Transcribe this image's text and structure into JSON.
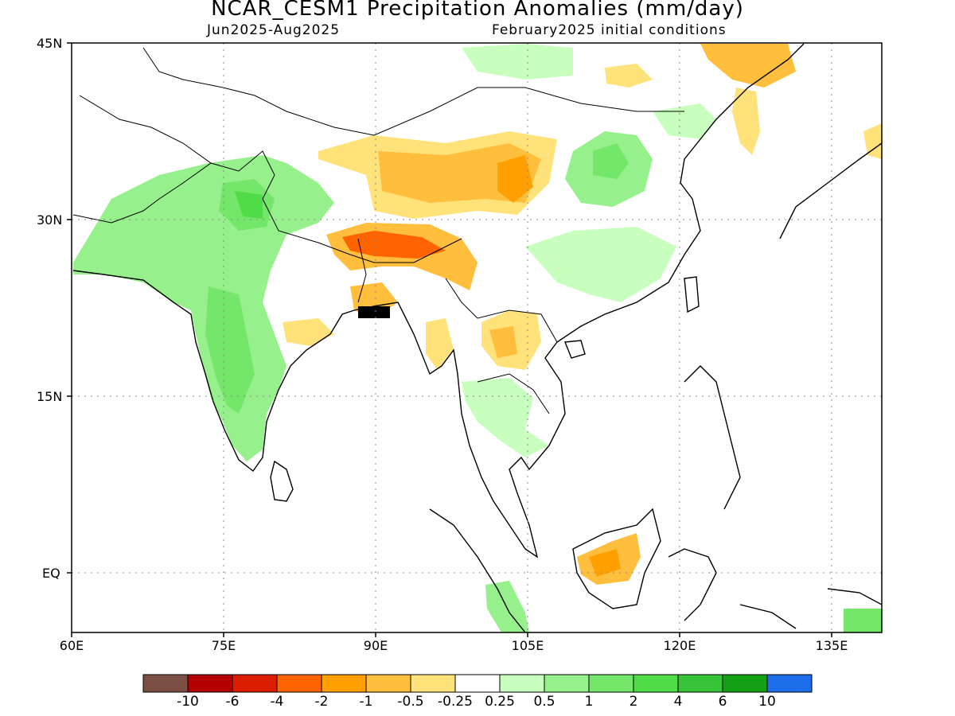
{
  "header": {
    "title": "NCAR_CESM1 Precipitation Anomalies (mm/day)",
    "period": "Jun2025-Aug2025",
    "init": "February2025 initial conditions"
  },
  "map": {
    "lon_range": [
      60,
      140
    ],
    "lat_range": [
      -6,
      45
    ],
    "lat_labels": [
      "45N",
      "30N",
      "15N",
      "EQ"
    ],
    "lon_labels": [
      "60E",
      "75E",
      "90E",
      "105E",
      "120E",
      "135E"
    ],
    "grid_lines": "dotted"
  },
  "colorbar": {
    "colors": [
      "#7b4f43",
      "#b40000",
      "#dc1e00",
      "#ff6400",
      "#ffa000",
      "#ffbe3c",
      "#ffe27a",
      "#ffffff",
      "#c8ffbe",
      "#96f08c",
      "#74e66a",
      "#50dc46",
      "#37c337",
      "#14a014",
      "#1e6eeb"
    ],
    "labels": [
      "-10",
      "-6",
      "-4",
      "-2",
      "-1",
      "-0.5",
      "-0.25",
      "0.25",
      "0.5",
      "1",
      "2",
      "4",
      "6",
      "10"
    ]
  }
}
